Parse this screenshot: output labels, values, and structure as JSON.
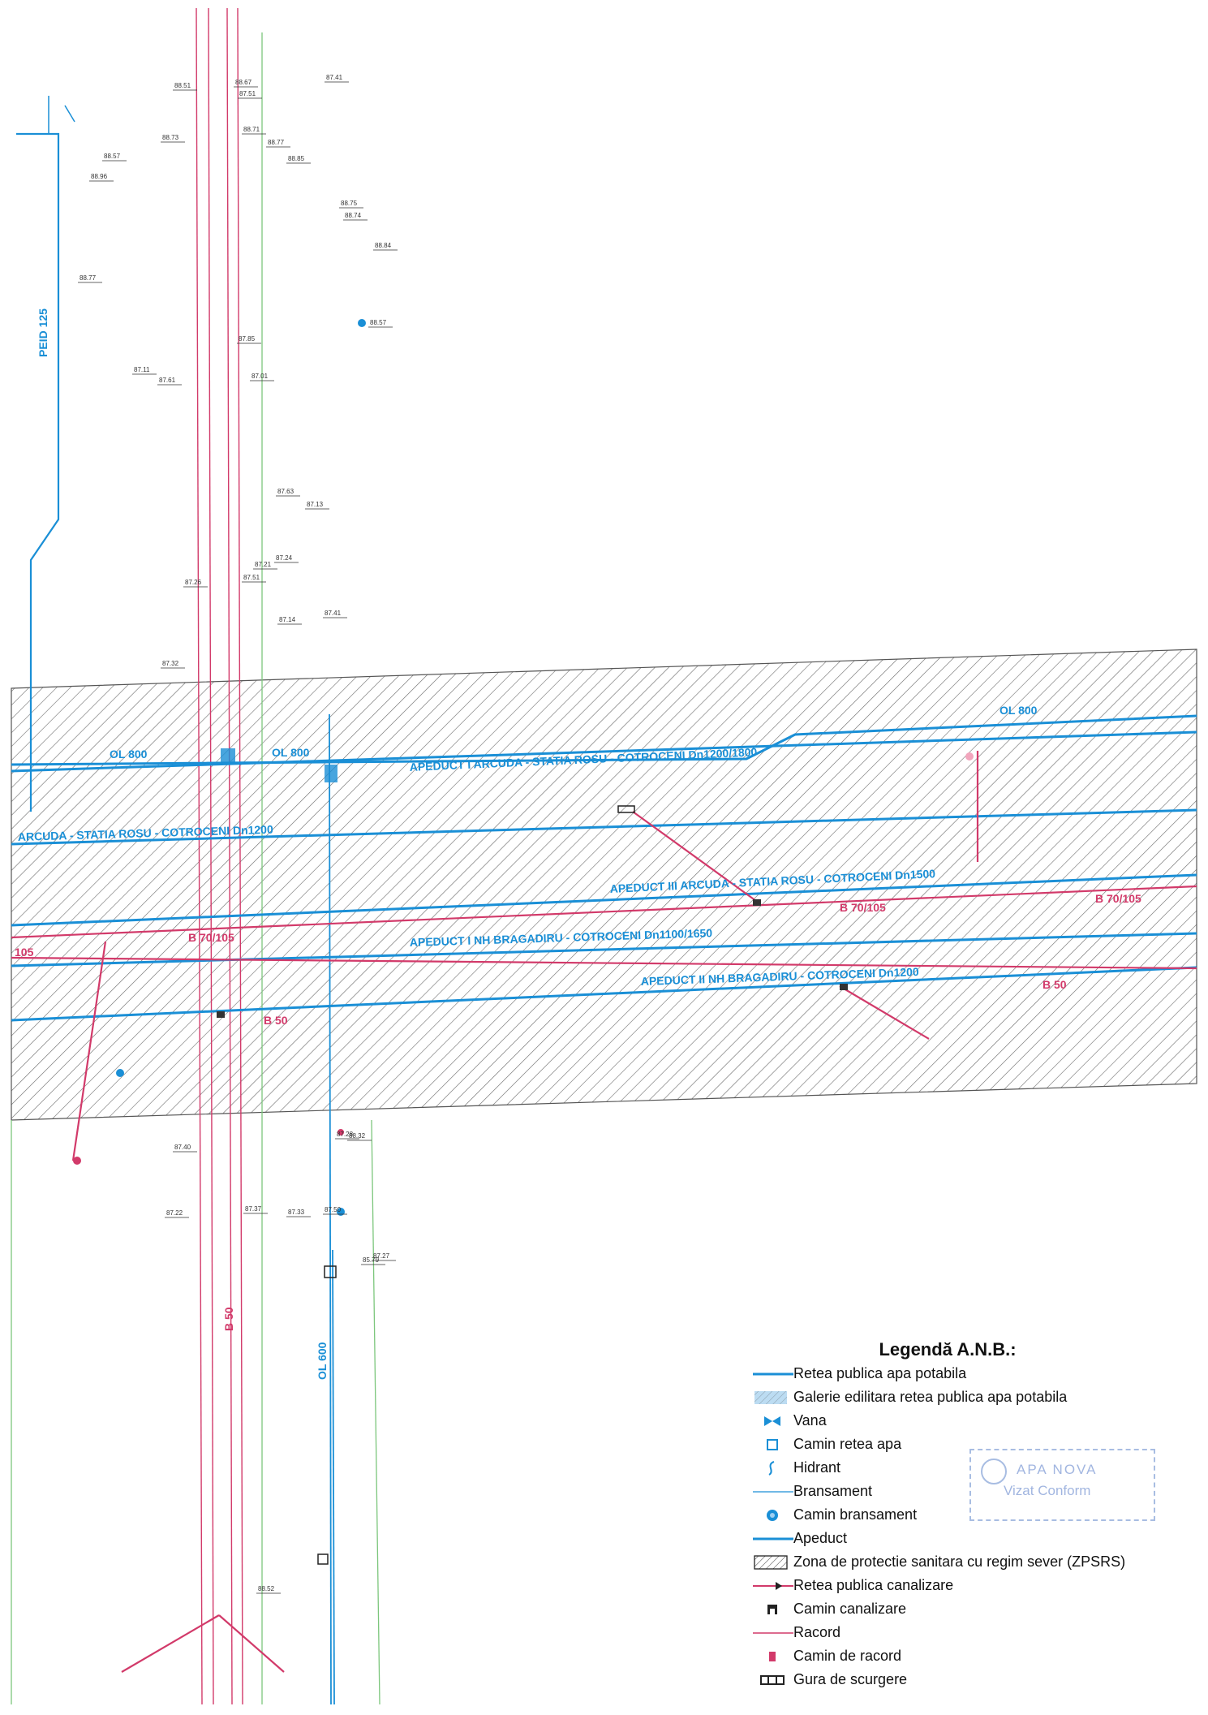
{
  "network_labels": {
    "peid": "PEID 125",
    "ol800_a": "OL 800",
    "ol800_b": "OL 800",
    "ol800_c": "OL 800",
    "apeduct1": "APEDUCT I ARCUDA - STATIA ROSU - COTROCENI Dn1200/1800",
    "arcuda": "ARCUDA - STATIA ROSU - COTROCENI Dn1200",
    "apeduct3": "APEDUCT III ARCUDA - STATIA ROSU - COTROCENI Dn1500",
    "apeduct_i_nh": "APEDUCT I NH BRAGADIRU - COTROCENI Dn1100/1650",
    "apeduct_ii_nh": "APEDUCT II NH BRAGADIRU - COTROCENI Dn1200",
    "ol600": "OL 600"
  },
  "sewer_labels": {
    "b70_a": "B 70/105",
    "b70_b": "B 70/105",
    "b70_c": "B 70/105",
    "b105": "105",
    "b50_a": "B 50",
    "b50_b": "B 50",
    "b50_v": "B 50"
  },
  "elevations": [
    "87.41",
    "88.51",
    "87.51",
    "88.67",
    "88.71",
    "88.77",
    "88.73",
    "88.57",
    "88.75",
    "88.74",
    "88.84",
    "88.57",
    "88.85",
    "88.96",
    "88.77",
    "87.85",
    "87.11",
    "87.61",
    "87.01",
    "87.63",
    "87.13",
    "87.21",
    "87.51",
    "87.24",
    "87.14",
    "87.41",
    "87.32",
    "87.26",
    "87.22",
    "87.37",
    "87.33",
    "87.27",
    "87.28",
    "85.79",
    "88.32",
    "87.40",
    "87.50",
    "88.52"
  ],
  "legend": {
    "title": "Legendă A.N.B.:",
    "items": [
      {
        "label": "Retea publica apa potabila",
        "symbol": "water-line",
        "color": "#1a8fd6"
      },
      {
        "label": "Galerie edilitara retea publica apa potabila",
        "symbol": "gallery-hatch",
        "color": "#8fc4ea"
      },
      {
        "label": "Vana",
        "symbol": "valve",
        "color": "#1a8fd6"
      },
      {
        "label": "Camin retea apa",
        "symbol": "water-chamber",
        "color": "#1a8fd6"
      },
      {
        "label": "Hidrant",
        "symbol": "hydrant",
        "color": "#1a8fd6"
      },
      {
        "label": "Bransament",
        "symbol": "branch-line",
        "color": "#1a8fd6"
      },
      {
        "label": "Camin bransament",
        "symbol": "branch-chamber",
        "color": "#1a8fd6"
      },
      {
        "label": "Apeduct",
        "symbol": "aqueduct-line",
        "color": "#1a8fd6"
      },
      {
        "label": "Zona de protectie sanitara cu regim sever (ZPSRS)",
        "symbol": "zpsrs-hatch",
        "color": "#222222"
      },
      {
        "label": "Retea publica canalizare",
        "symbol": "sewer-line",
        "color": "#d23a6a"
      },
      {
        "label": "Camin canalizare",
        "symbol": "sewer-chamber",
        "color": "#222222"
      },
      {
        "label": "Racord",
        "symbol": "connection-line",
        "color": "#d23a6a"
      },
      {
        "label": "Camin de racord",
        "symbol": "connection-chamber",
        "color": "#d23a6a"
      },
      {
        "label": "Gura de scurgere",
        "symbol": "drain-grate",
        "color": "#222222"
      }
    ]
  },
  "stamp": {
    "line1": "APA NOVA",
    "line2": "Vizat Conform"
  },
  "colors": {
    "water": "#1a8fd6",
    "sewer": "#d23a6a",
    "hatch": "#555555",
    "green": "#7cc67c"
  }
}
